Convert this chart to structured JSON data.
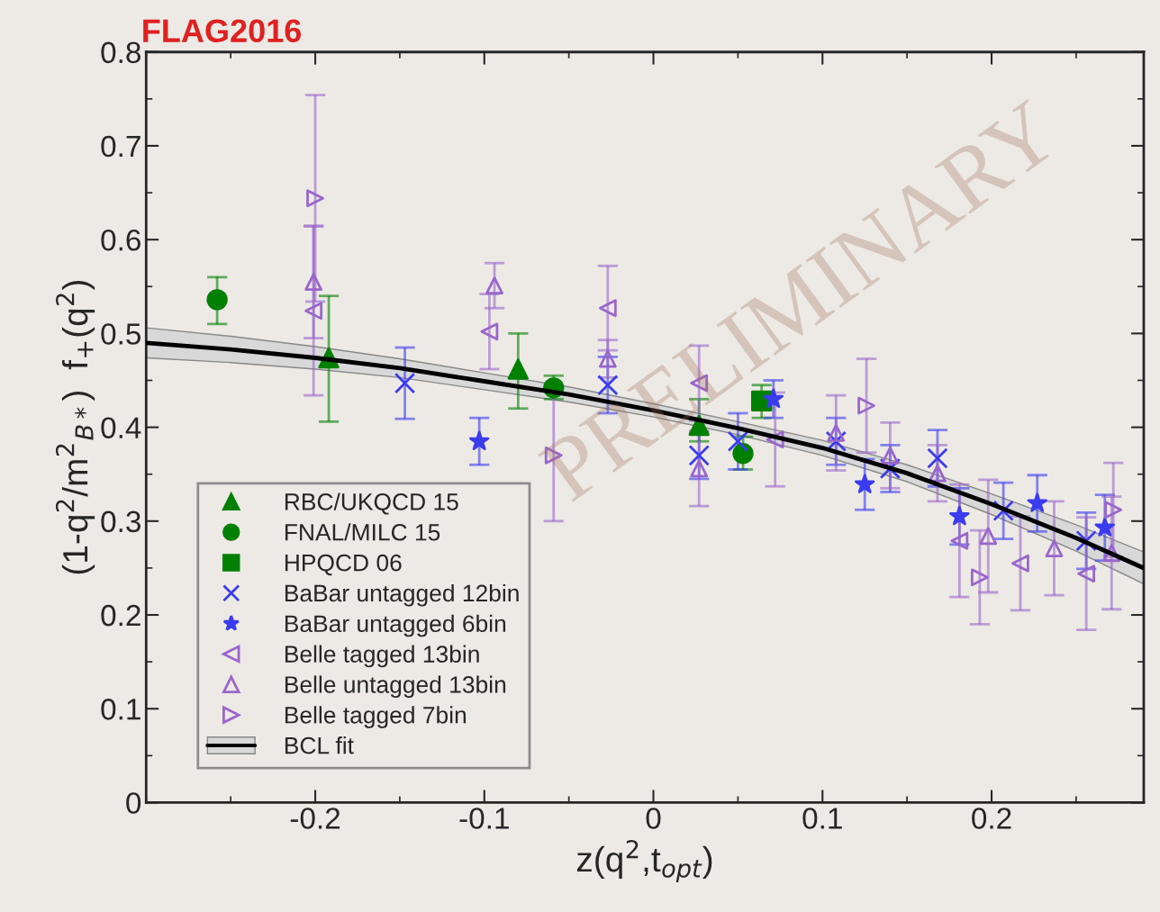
{
  "chart_data": {
    "type": "scatter",
    "title": "FLAG2016",
    "xlabel": "z(q$^{2}$,t$_{opt}$)",
    "ylabel": "(1-q$^{2}$/m$^{2}$$_{B*}$)  f$_{+}$(q$^{2}$)",
    "annotations": [
      "PRELIMINARY"
    ],
    "xlim": [
      -0.3,
      0.29
    ],
    "xticks": [
      -0.2,
      -0.1,
      0,
      0.1,
      0.2
    ],
    "ylim": [
      0,
      0.8
    ],
    "yticks": [
      0,
      0.1,
      0.2,
      0.3,
      0.4,
      0.5,
      0.6,
      0.7,
      0.8
    ],
    "grid": false,
    "legend": "bottom left",
    "series": [
      {
        "name": "RBC/UKQCD 15",
        "color": "#008000",
        "marker": "triangle",
        "x": [
          -0.192,
          -0.08,
          0.027
        ],
        "values": [
          0.474,
          0.462,
          0.402
        ],
        "errors": [
          [
            0.406,
            0.54
          ],
          [
            0.42,
            0.5
          ],
          [
            0.385,
            0.43
          ]
        ]
      },
      {
        "name": "FNAL/MILC 15",
        "color": "#008000",
        "marker": "circle",
        "x": [
          -0.258,
          -0.059,
          0.053
        ],
        "values": [
          0.536,
          0.442,
          0.372
        ],
        "errors": [
          [
            0.51,
            0.56
          ],
          [
            0.43,
            0.455
          ],
          [
            0.355,
            0.39
          ]
        ]
      },
      {
        "name": "HPQCD 06",
        "color": "#008000",
        "marker": "square",
        "x": [
          0.064
        ],
        "values": [
          0.428
        ],
        "errors": [
          [
            0.41,
            0.445
          ]
        ]
      },
      {
        "name": "BaBar untagged 12bin",
        "color": "#3b3bf0",
        "marker": "cross",
        "x": [
          -0.147,
          -0.027,
          0.027,
          0.05,
          0.108,
          0.14,
          0.168,
          0.207,
          0.256
        ],
        "values": [
          0.447,
          0.445,
          0.37,
          0.385,
          0.385,
          0.356,
          0.367,
          0.311,
          0.279
        ],
        "errors": [
          0.038,
          0.03,
          0.025,
          0.03,
          0.025,
          0.025,
          0.03,
          0.03,
          0.03
        ]
      },
      {
        "name": "BaBar untagged 6bin",
        "color": "#3b3bf0",
        "marker": "star",
        "x": [
          -0.103,
          0.071,
          0.125,
          0.181,
          0.227,
          0.267
        ],
        "values": [
          0.385,
          0.43,
          0.339,
          0.305,
          0.319,
          0.293
        ],
        "errors": [
          0.025,
          0.02,
          0.027,
          0.03,
          0.03,
          0.035
        ]
      },
      {
        "name": "Belle tagged 13bin",
        "color": "#9966cc",
        "marker": "triangle-left",
        "x": [
          -0.201,
          -0.097,
          -0.027,
          0.027,
          0.072,
          0.181,
          0.217,
          0.256
        ],
        "values": [
          0.524,
          0.502,
          0.527,
          0.447,
          0.387,
          0.279,
          0.255,
          0.244
        ],
        "errors": [
          0.09,
          0.04,
          0.045,
          0.04,
          0.05,
          0.06,
          0.05,
          0.06
        ]
      },
      {
        "name": "Belle untagged 13bin",
        "color": "#9966cc",
        "marker": "triangle",
        "x": [
          -0.201,
          -0.094,
          -0.027,
          0.027,
          0.108,
          0.14,
          0.168,
          0.198,
          0.237,
          0.271
        ],
        "values": [
          0.555,
          0.551,
          0.473,
          0.356,
          0.394,
          0.37,
          0.351,
          0.284,
          0.271,
          0.266
        ],
        "errors": [
          0.06,
          0.024,
          0.02,
          0.04,
          0.04,
          0.035,
          0.03,
          0.06,
          0.05,
          0.06
        ]
      },
      {
        "name": "Belle tagged 7bin",
        "color": "#9966cc",
        "marker": "triangle-right",
        "x": [
          -0.2,
          -0.059,
          0.126,
          0.193,
          0.272
        ],
        "values": [
          0.644,
          0.37,
          0.423,
          0.24,
          0.312
        ],
        "errors": [
          0.11,
          0.07,
          0.05,
          0.05,
          0.05
        ]
      },
      {
        "name": "BCL fit",
        "type": "line",
        "color": "#000000",
        "marker": "none",
        "x": [
          -0.3,
          -0.25,
          -0.2,
          -0.15,
          -0.1,
          -0.05,
          0,
          0.05,
          0.1,
          0.15,
          0.2,
          0.25,
          0.29
        ],
        "values": [
          0.49,
          0.483,
          0.474,
          0.463,
          0.449,
          0.435,
          0.418,
          0.399,
          0.378,
          0.351,
          0.318,
          0.282,
          0.25
        ],
        "lower": [
          0.474,
          0.469,
          0.462,
          0.453,
          0.44,
          0.427,
          0.411,
          0.392,
          0.37,
          0.342,
          0.307,
          0.268,
          0.233
        ],
        "upper": [
          0.506,
          0.497,
          0.486,
          0.473,
          0.458,
          0.443,
          0.425,
          0.406,
          0.386,
          0.36,
          0.329,
          0.296,
          0.267
        ]
      }
    ]
  }
}
